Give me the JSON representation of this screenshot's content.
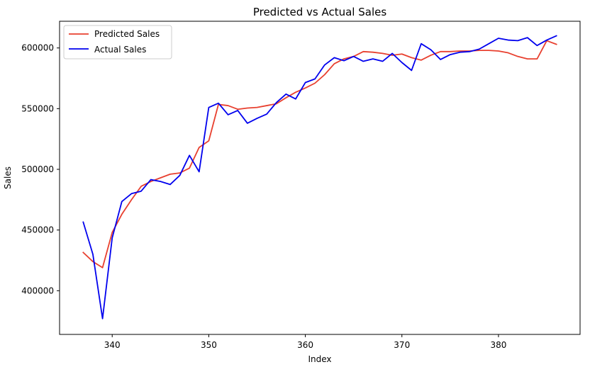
{
  "chart_data": {
    "type": "line",
    "title": "Predicted vs Actual Sales",
    "xlabel": "Index",
    "ylabel": "Sales",
    "xlim": [
      334.55,
      388.45
    ],
    "ylim": [
      364000,
      622000
    ],
    "xticks": [
      340,
      350,
      360,
      370,
      380
    ],
    "yticks": [
      400000,
      450000,
      500000,
      550000,
      600000
    ],
    "xtick_labels": [
      "340",
      "350",
      "360",
      "370",
      "380"
    ],
    "ytick_labels": [
      "400000",
      "450000",
      "500000",
      "550000",
      "600000"
    ],
    "grid": false,
    "legend_position": "top-left",
    "x": [
      337,
      338,
      339,
      340,
      341,
      342,
      343,
      344,
      345,
      346,
      347,
      348,
      349,
      350,
      351,
      352,
      353,
      354,
      355,
      356,
      357,
      358,
      359,
      360,
      361,
      362,
      363,
      364,
      365,
      366,
      367,
      368,
      369,
      370,
      371,
      372,
      373,
      374,
      375,
      376,
      377,
      378,
      379,
      380,
      381,
      382,
      383,
      384,
      385,
      386
    ],
    "series": [
      {
        "name": "Predicted Sales",
        "color": "#e8402f",
        "values": [
          431500,
          424000,
          419000,
          448000,
          463000,
          475000,
          486000,
          490000,
          493000,
          496000,
          497000,
          501000,
          518000,
          523500,
          553500,
          552500,
          549500,
          550500,
          551000,
          552500,
          554000,
          559000,
          563500,
          567000,
          571000,
          578000,
          587000,
          591000,
          593000,
          597000,
          596500,
          595500,
          594000,
          595000,
          592000,
          590000,
          594000,
          597000,
          597000,
          597500,
          597500,
          598000,
          598000,
          597500,
          596000,
          593000,
          591000,
          591000,
          606000,
          603000
        ]
      },
      {
        "name": "Actual Sales",
        "color": "#0000ee",
        "values": [
          456500,
          430000,
          377000,
          443500,
          473500,
          480000,
          482000,
          491500,
          490000,
          487500,
          495000,
          511500,
          498000,
          551000,
          554500,
          545000,
          548500,
          538000,
          542000,
          545500,
          555000,
          562000,
          558000,
          571500,
          574500,
          586000,
          592000,
          589500,
          593000,
          589000,
          591000,
          589000,
          595500,
          588000,
          581500,
          603500,
          598500,
          590500,
          594500,
          596500,
          597000,
          599000,
          603500,
          608000,
          606500,
          606000,
          608500,
          602000,
          606500,
          610000
        ]
      }
    ]
  }
}
